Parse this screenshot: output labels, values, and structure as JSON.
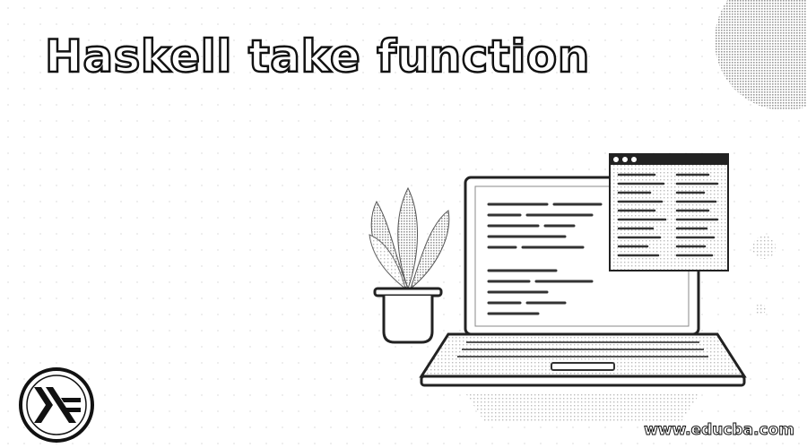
{
  "title": "Haskell take function",
  "watermark_url": "www.educba.com",
  "icons": {
    "logo": "haskell-logo-icon",
    "decor_circle": "decorative-circle",
    "decor_dot": "decorative-dot"
  }
}
